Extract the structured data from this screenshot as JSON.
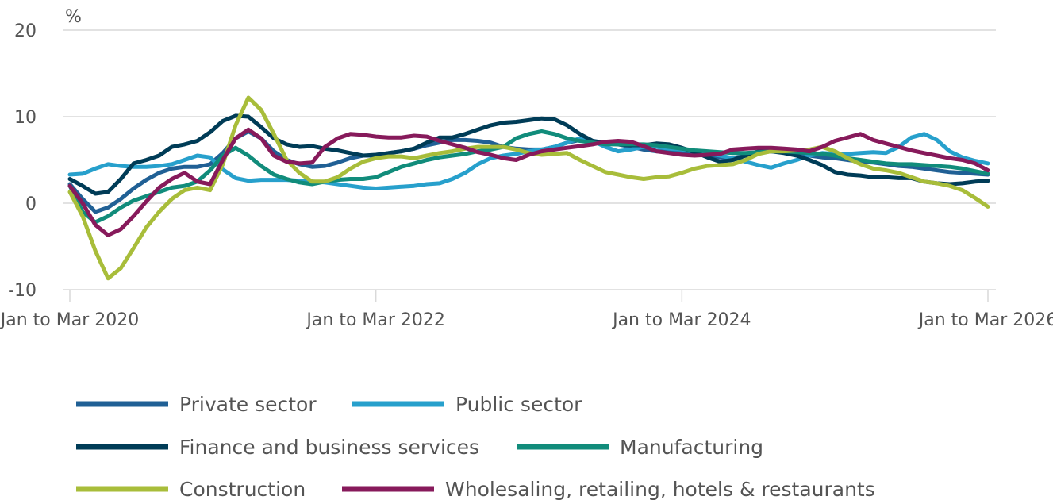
{
  "chart_data": {
    "type": "line",
    "ylabel": "%",
    "ylim": [
      -10,
      20
    ],
    "yticks": [
      20,
      10,
      0,
      -10
    ],
    "grid": true,
    "legend_position": "bottom",
    "x_tick_labels": [
      "Jan to Mar 2020",
      "Jan to Mar 2022",
      "Jan to Mar 2024",
      "Jan to Mar 2026"
    ],
    "x_tick_index": [
      0,
      24,
      48,
      72
    ],
    "series": [
      {
        "name": "Private sector",
        "color": "#206095",
        "values": [
          2.2,
          0.5,
          -1.0,
          -0.5,
          0.5,
          1.7,
          2.7,
          3.5,
          4.0,
          4.2,
          4.2,
          4.5,
          5.8,
          7.5,
          8.3,
          7.5,
          6.0,
          5.0,
          4.5,
          4.2,
          4.3,
          4.7,
          5.2,
          5.5,
          5.5,
          5.8,
          6.0,
          6.3,
          6.7,
          7.0,
          7.3,
          7.3,
          7.2,
          7.0,
          6.5,
          6.3,
          6.2,
          6.2,
          6.5,
          7.0,
          7.3,
          7.2,
          7.0,
          6.8,
          6.5,
          6.2,
          6.0,
          6.0,
          6.0,
          5.7,
          5.5,
          5.3,
          5.2,
          5.5,
          5.8,
          6.0,
          6.0,
          5.8,
          5.5,
          5.3,
          5.2,
          5.0,
          4.8,
          4.7,
          4.5,
          4.3,
          4.2,
          4.0,
          3.8,
          3.6,
          3.5,
          3.4,
          3.3
        ]
      },
      {
        "name": "Public sector",
        "color": "#27a0cc",
        "values": [
          3.3,
          3.4,
          4.0,
          4.5,
          4.3,
          4.2,
          4.2,
          4.3,
          4.5,
          5.0,
          5.5,
          5.3,
          3.9,
          2.9,
          2.6,
          2.7,
          2.7,
          2.7,
          2.6,
          2.5,
          2.4,
          2.2,
          2.0,
          1.8,
          1.7,
          1.8,
          1.9,
          2.0,
          2.2,
          2.3,
          2.8,
          3.5,
          4.5,
          5.2,
          5.5,
          5.7,
          6.0,
          6.2,
          6.5,
          7.0,
          7.5,
          7.2,
          6.5,
          6.0,
          6.2,
          6.5,
          6.5,
          6.3,
          6.2,
          6.0,
          5.8,
          5.5,
          5.2,
          4.8,
          4.4,
          4.1,
          4.6,
          5.0,
          5.5,
          5.8,
          5.7,
          5.7,
          5.8,
          5.9,
          5.8,
          6.5,
          7.6,
          8.0,
          7.3,
          6.0,
          5.3,
          4.9,
          4.6
        ]
      },
      {
        "name": "Finance and business services",
        "color": "#003c57",
        "values": [
          2.8,
          2.0,
          1.1,
          1.3,
          2.8,
          4.6,
          5.0,
          5.5,
          6.5,
          6.8,
          7.2,
          8.2,
          9.5,
          10.1,
          10.0,
          8.8,
          7.5,
          6.8,
          6.5,
          6.6,
          6.3,
          6.1,
          5.8,
          5.5,
          5.6,
          5.8,
          6.0,
          6.3,
          7.0,
          7.6,
          7.6,
          8.0,
          8.5,
          9.0,
          9.3,
          9.4,
          9.6,
          9.8,
          9.7,
          9.0,
          8.0,
          7.2,
          6.9,
          6.8,
          6.7,
          6.7,
          6.9,
          6.8,
          6.4,
          5.9,
          5.3,
          4.8,
          5.0,
          5.5,
          6.0,
          6.0,
          5.8,
          5.5,
          5.0,
          4.4,
          3.6,
          3.3,
          3.2,
          3.0,
          3.0,
          2.9,
          2.9,
          2.5,
          2.3,
          2.2,
          2.3,
          2.5,
          2.6
        ]
      },
      {
        "name": "Manufacturing",
        "color": "#118c7b",
        "values": [
          2.0,
          -1.0,
          -2.2,
          -1.5,
          -0.5,
          0.3,
          0.8,
          1.3,
          1.8,
          2.0,
          2.5,
          3.8,
          5.5,
          6.4,
          5.5,
          4.3,
          3.3,
          2.8,
          2.4,
          2.2,
          2.5,
          2.7,
          2.8,
          2.8,
          3.0,
          3.6,
          4.2,
          4.6,
          5.0,
          5.3,
          5.5,
          5.7,
          6.0,
          6.2,
          6.5,
          7.5,
          8.0,
          8.3,
          8.0,
          7.5,
          7.2,
          7.0,
          6.8,
          6.8,
          6.8,
          6.8,
          6.7,
          6.5,
          6.3,
          6.1,
          6.0,
          5.9,
          5.8,
          5.8,
          5.9,
          6.0,
          6.0,
          5.9,
          5.8,
          5.7,
          5.5,
          5.2,
          5.0,
          4.8,
          4.6,
          4.5,
          4.5,
          4.4,
          4.3,
          4.2,
          4.0,
          3.7,
          3.4
        ]
      },
      {
        "name": "Construction",
        "color": "#a8bd3a",
        "values": [
          1.3,
          -1.5,
          -5.5,
          -8.7,
          -7.5,
          -5.2,
          -2.8,
          -1.0,
          0.5,
          1.5,
          1.8,
          1.5,
          4.5,
          9.0,
          12.2,
          10.8,
          8.0,
          5.0,
          3.5,
          2.5,
          2.5,
          3.0,
          4.0,
          4.8,
          5.2,
          5.4,
          5.4,
          5.2,
          5.5,
          5.8,
          6.0,
          6.3,
          6.5,
          6.5,
          6.5,
          6.2,
          5.8,
          5.6,
          5.7,
          5.8,
          5.0,
          4.3,
          3.6,
          3.3,
          3.0,
          2.8,
          3.0,
          3.1,
          3.5,
          4.0,
          4.3,
          4.4,
          4.5,
          5.0,
          5.7,
          6.0,
          6.0,
          6.1,
          6.2,
          6.5,
          6.0,
          5.2,
          4.5,
          4.0,
          3.8,
          3.5,
          3.0,
          2.5,
          2.3,
          2.0,
          1.5,
          0.6,
          -0.4
        ]
      },
      {
        "name": "Wholesaling, retailing, hotels & restaurants",
        "color": "#871a5b",
        "values": [
          2.0,
          0.0,
          -2.5,
          -3.7,
          -3.0,
          -1.5,
          0.2,
          1.8,
          2.8,
          3.5,
          2.5,
          2.2,
          5.0,
          7.5,
          8.5,
          7.5,
          5.5,
          4.8,
          4.6,
          4.7,
          6.5,
          7.5,
          8.0,
          7.9,
          7.7,
          7.6,
          7.6,
          7.8,
          7.7,
          7.2,
          6.8,
          6.4,
          5.9,
          5.6,
          5.2,
          5.0,
          5.6,
          6.0,
          6.2,
          6.4,
          6.6,
          6.8,
          7.1,
          7.2,
          7.1,
          6.6,
          6.0,
          5.8,
          5.6,
          5.5,
          5.6,
          5.7,
          6.2,
          6.3,
          6.4,
          6.4,
          6.3,
          6.2,
          6.0,
          6.5,
          7.2,
          7.6,
          8.0,
          7.3,
          6.9,
          6.5,
          6.1,
          5.8,
          5.5,
          5.2,
          5.0,
          4.6,
          3.8
        ]
      }
    ]
  }
}
